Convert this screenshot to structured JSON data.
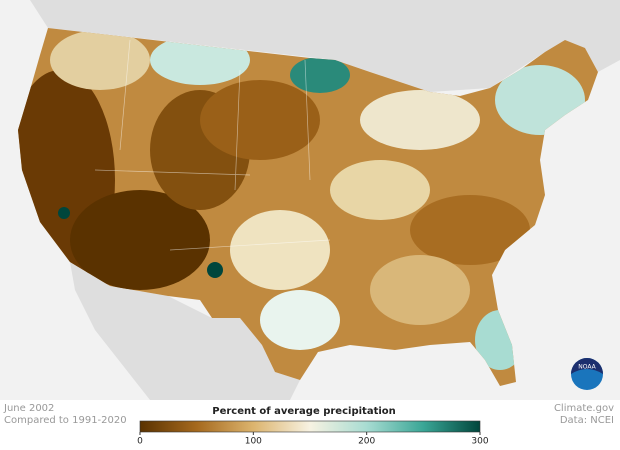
{
  "caption": {
    "date": "June 2002",
    "baseline": "Compared to 1991-2020"
  },
  "credit": {
    "source": "Climate.gov",
    "data": "Data: NCEI",
    "logo": "NOAA"
  },
  "legend": {
    "title": "Percent of average precipitation",
    "range": [
      0,
      300
    ],
    "ticks": [
      0,
      100,
      200,
      300
    ],
    "colors": [
      "#5a3200",
      "#a5691e",
      "#dcb46e",
      "#f7f2e2",
      "#a8dcd2",
      "#3aa696",
      "#00463c"
    ]
  }
}
